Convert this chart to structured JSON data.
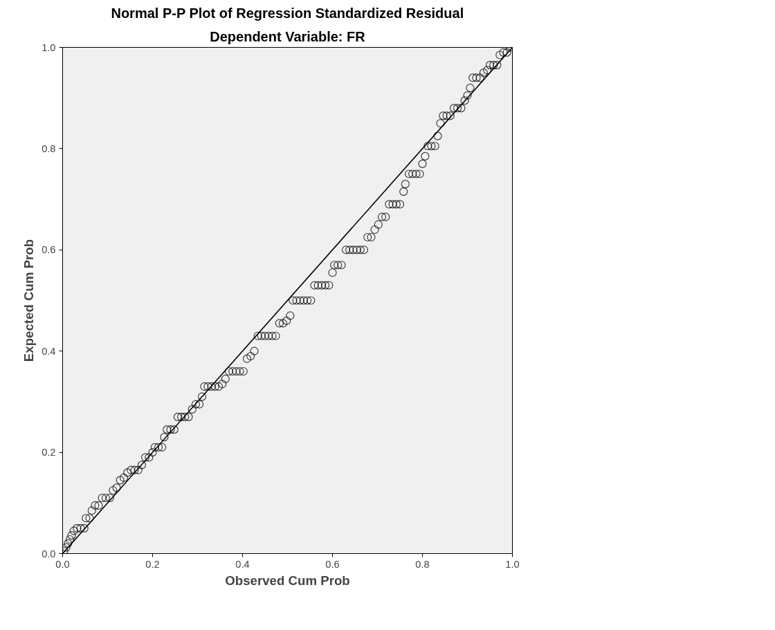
{
  "chart_data": {
    "type": "scatter",
    "title": "Normal P-P Plot of Regression Standardized Residual",
    "subtitle": "Dependent Variable: FR",
    "xlabel": "Observed Cum Prob",
    "ylabel": "Expected Cum Prob",
    "xlim": [
      0,
      1
    ],
    "ylim": [
      0,
      1
    ],
    "xticks": [
      {
        "value": 0,
        "label": "0.0"
      },
      0.2,
      0.4,
      0.6,
      0.8,
      {
        "value": 1,
        "label": "1.0"
      }
    ],
    "yticks": [
      {
        "value": 0,
        "label": "0.0"
      },
      0.2,
      0.4,
      0.6,
      0.8,
      {
        "value": 1,
        "label": "1.0"
      }
    ],
    "grid": false,
    "series": [
      {
        "marker": "circle",
        "color": "#000000",
        "x": [
          0.003,
          0.008,
          0.012,
          0.016,
          0.02,
          0.025,
          0.032,
          0.04,
          0.048,
          0.052,
          0.06,
          0.065,
          0.072,
          0.08,
          0.088,
          0.096,
          0.105,
          0.112,
          0.12,
          0.128,
          0.136,
          0.144,
          0.152,
          0.16,
          0.168,
          0.176,
          0.184,
          0.192,
          0.2,
          0.205,
          0.213,
          0.221,
          0.226,
          0.232,
          0.24,
          0.248,
          0.256,
          0.264,
          0.272,
          0.28,
          0.288,
          0.296,
          0.304,
          0.31,
          0.315,
          0.323,
          0.331,
          0.339,
          0.347,
          0.355,
          0.362,
          0.37,
          0.378,
          0.386,
          0.394,
          0.402,
          0.41,
          0.418,
          0.426,
          0.434,
          0.442,
          0.45,
          0.458,
          0.466,
          0.474,
          0.482,
          0.49,
          0.498,
          0.506,
          0.512,
          0.52,
          0.528,
          0.536,
          0.544,
          0.552,
          0.56,
          0.568,
          0.576,
          0.584,
          0.592,
          0.6,
          0.604,
          0.612,
          0.62,
          0.63,
          0.638,
          0.646,
          0.654,
          0.662,
          0.67,
          0.678,
          0.686,
          0.694,
          0.702,
          0.71,
          0.718,
          0.726,
          0.734,
          0.742,
          0.75,
          0.758,
          0.762,
          0.77,
          0.778,
          0.786,
          0.794,
          0.8,
          0.806,
          0.812,
          0.82,
          0.828,
          0.834,
          0.84,
          0.846,
          0.854,
          0.862,
          0.87,
          0.878,
          0.886,
          0.894,
          0.9,
          0.906,
          0.912,
          0.92,
          0.928,
          0.936,
          0.944,
          0.95,
          0.958,
          0.966,
          0.972,
          0.98,
          0.988,
          0.995
        ],
        "values": [
          0.005,
          0.012,
          0.02,
          0.028,
          0.036,
          0.045,
          0.05,
          0.05,
          0.05,
          0.07,
          0.07,
          0.085,
          0.095,
          0.095,
          0.11,
          0.11,
          0.11,
          0.125,
          0.13,
          0.145,
          0.15,
          0.16,
          0.165,
          0.165,
          0.165,
          0.175,
          0.19,
          0.19,
          0.2,
          0.21,
          0.21,
          0.21,
          0.23,
          0.245,
          0.245,
          0.245,
          0.27,
          0.27,
          0.27,
          0.27,
          0.285,
          0.295,
          0.295,
          0.31,
          0.33,
          0.33,
          0.33,
          0.33,
          0.33,
          0.335,
          0.345,
          0.36,
          0.36,
          0.36,
          0.36,
          0.36,
          0.385,
          0.39,
          0.4,
          0.43,
          0.43,
          0.43,
          0.43,
          0.43,
          0.43,
          0.455,
          0.455,
          0.46,
          0.47,
          0.5,
          0.5,
          0.5,
          0.5,
          0.5,
          0.5,
          0.53,
          0.53,
          0.53,
          0.53,
          0.53,
          0.555,
          0.57,
          0.57,
          0.57,
          0.6,
          0.6,
          0.6,
          0.6,
          0.6,
          0.6,
          0.625,
          0.625,
          0.64,
          0.65,
          0.665,
          0.665,
          0.69,
          0.69,
          0.69,
          0.69,
          0.715,
          0.73,
          0.75,
          0.75,
          0.75,
          0.75,
          0.77,
          0.785,
          0.805,
          0.805,
          0.805,
          0.825,
          0.85,
          0.865,
          0.865,
          0.865,
          0.88,
          0.88,
          0.88,
          0.895,
          0.905,
          0.92,
          0.94,
          0.94,
          0.94,
          0.95,
          0.955,
          0.965,
          0.965,
          0.965,
          0.985,
          0.99,
          0.99,
          1.0
        ]
      },
      {
        "type": "line",
        "line_style": "solid",
        "color": "#000000",
        "x": [
          0,
          1
        ],
        "values": [
          0,
          1
        ]
      }
    ]
  }
}
